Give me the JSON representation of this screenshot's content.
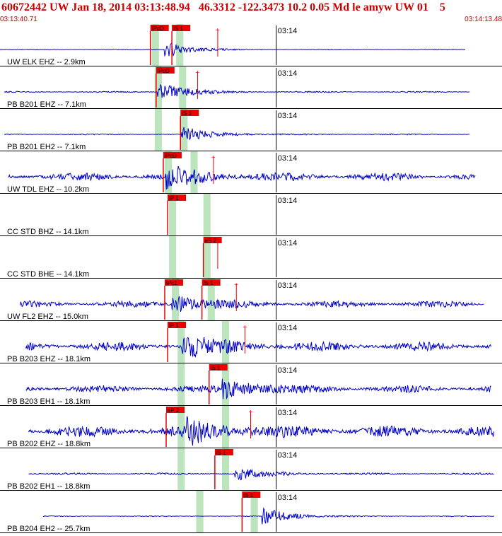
{
  "header": {
    "event_line": "60672442 UW Jan 18, 2014 03:13:48.94   46.3312 -122.3473 10.2 0.05 Md le amyw UW 01    5",
    "start_time": "03:13:40.71",
    "end_time": "03:14:13.48"
  },
  "colors": {
    "trace": "#0000cc",
    "pick_box": "#ee0000",
    "pick_text": "#000000",
    "window": "#bde5bd",
    "axis": "#000000",
    "header_text": "#cc0000"
  },
  "chart_data": {
    "type": "line",
    "title": "60672442 UW Jan 18, 2014 03:13:48.94   46.3312 -122.3473 10.2 0.05 Md le amyw UW 01    5",
    "x_start": "03:13:40.71",
    "x_end": "03:14:13.48",
    "x_tick_label": "03:14",
    "x_tick_seconds": 19.29,
    "x_range_seconds": [
      0,
      32.77
    ],
    "traces": [
      {
        "station": "UW ELK EHZ -- 2.9km",
        "noise": 0.3,
        "onset": 11.5,
        "coda_amp": 13,
        "coda_len": 4,
        "pre_amp": 0,
        "picks": [
          {
            "label": "iPcD",
            "t": 10.5
          },
          {
            "label": "iS 1",
            "t": 12.0
          }
        ],
        "windows": [
          [
            10.6,
            11.1
          ],
          [
            12.3,
            12.8
          ]
        ],
        "markers": [
          15.2
        ],
        "extent": [
          0.0,
          32.5
        ]
      },
      {
        "station": "PB B201 EHZ -- 7.1km",
        "noise": 0.6,
        "onset": 11.0,
        "coda_amp": 14,
        "coda_len": 5,
        "pre_amp": 0,
        "picks": [
          {
            "label": "iPcD",
            "t": 10.9
          }
        ],
        "windows": [
          [
            10.8,
            11.3
          ],
          [
            12.5,
            13.0
          ]
        ],
        "markers": [
          13.8
        ],
        "extent": [
          0.3,
          32.8
        ]
      },
      {
        "station": "PB B201 EH2 -- 7.1km",
        "noise": 0.5,
        "onset": 12.6,
        "coda_amp": 12,
        "coda_len": 5,
        "pre_amp": 0,
        "picks": [
          {
            "label": "iS 1",
            "t": 12.6
          }
        ],
        "windows": [
          [
            10.8,
            11.3
          ],
          [
            12.6,
            13.1
          ]
        ],
        "markers": [],
        "extent": [
          0.3,
          32.8
        ]
      },
      {
        "station": "UW TDL EHZ -- 10.2km",
        "noise": 3.5,
        "onset": 11.6,
        "coda_amp": 14,
        "coda_len": 6,
        "pre_amp": 0,
        "picks": [
          {
            "label": "iPcD",
            "t": 11.4
          }
        ],
        "windows": [
          [
            11.5,
            12.0
          ],
          [
            13.3,
            13.8
          ]
        ],
        "markers": [
          14.9
        ],
        "extent": [
          0.6,
          33.2
        ]
      },
      {
        "station": "CC STD BHZ -- 14.1km",
        "noise": 0,
        "onset": 99,
        "coda_amp": 0,
        "coda_len": 0,
        "pre_amp": 0,
        "picks": [
          {
            "label": "iP 1",
            "t": 11.7
          }
        ],
        "windows": [
          [
            11.8,
            12.3
          ],
          [
            14.2,
            14.7
          ]
        ],
        "markers": [],
        "extent": [
          0,
          0
        ]
      },
      {
        "station": "CC STD BHE -- 14.1km",
        "noise": 0,
        "onset": 99,
        "coda_amp": 0,
        "coda_len": 0,
        "pre_amp": 0,
        "picks": [
          {
            "label": "eS 2",
            "t": 14.2
          }
        ],
        "windows": [
          [
            11.8,
            12.3
          ],
          [
            14.2,
            14.7
          ]
        ],
        "markers": [
          15.2
        ],
        "extent": [
          0,
          0
        ]
      },
      {
        "station": "UW FL2 EHZ -- 15.0km",
        "noise": 2.8,
        "onset": 12.0,
        "coda_amp": 14,
        "coda_len": 5,
        "pre_amp": 0,
        "picks": [
          {
            "label": "iPc1",
            "t": 11.5
          },
          {
            "label": "iS 1",
            "t": 14.1
          }
        ],
        "windows": [
          [
            12.0,
            12.5
          ],
          [
            14.5,
            15.0
          ]
        ],
        "markers": [
          16.5
        ],
        "extent": [
          1.4,
          33.8
        ]
      },
      {
        "station": "PB B203 EHZ -- 18.1km",
        "noise": 4.0,
        "onset": 12.7,
        "coda_amp": 16,
        "coda_len": 6,
        "pre_amp": 0,
        "picks": [
          {
            "label": "iP 1",
            "t": 11.7
          }
        ],
        "windows": [
          [
            12.4,
            12.9
          ],
          [
            15.5,
            16.0
          ]
        ],
        "markers": [
          17.1
        ],
        "extent": [
          1.8,
          34.3
        ]
      },
      {
        "station": "PB B203 EH1 -- 18.1km",
        "noise": 3.2,
        "onset": 15.5,
        "coda_amp": 16,
        "coda_len": 6,
        "pre_amp": 0,
        "picks": [
          {
            "label": "iS 1",
            "t": 14.6
          }
        ],
        "windows": [
          [
            12.4,
            12.9
          ],
          [
            15.5,
            16.0
          ]
        ],
        "markers": [],
        "extent": [
          1.8,
          34.3
        ]
      },
      {
        "station": "PB B202 EHZ -- 18.8km",
        "noise": 5.0,
        "onset": 13.0,
        "coda_amp": 15,
        "coda_len": 7,
        "pre_amp": 0,
        "picks": [
          {
            "label": "eP 2",
            "t": 11.6
          }
        ],
        "windows": [
          [
            12.4,
            12.9
          ],
          [
            15.5,
            16.0
          ]
        ],
        "markers": [
          17.5
        ],
        "extent": [
          2.0,
          34.5
        ]
      },
      {
        "station": "PB B202 EH1 -- 18.8km",
        "noise": 0.8,
        "onset": 16.4,
        "coda_amp": 10,
        "coda_len": 5,
        "pre_amp": 0,
        "picks": [
          {
            "label": "iS 1",
            "t": 15.0
          }
        ],
        "windows": [
          [
            12.4,
            12.9
          ],
          [
            15.5,
            16.0
          ]
        ],
        "markers": [],
        "extent": [
          2.0,
          34.5
        ]
      },
      {
        "station": "PB B204 EH2 -- 25.7km",
        "noise": 0.4,
        "onset": 18.3,
        "coda_amp": 12,
        "coda_len": 5,
        "pre_amp": 0,
        "picks": [
          {
            "label": "iS 1",
            "t": 16.9
          }
        ],
        "windows": [
          [
            13.7,
            14.2
          ],
          [
            17.5,
            18.0
          ]
        ],
        "markers": [],
        "extent": [
          3.0,
          34.5
        ]
      }
    ],
    "grid": false,
    "legend": "none"
  }
}
